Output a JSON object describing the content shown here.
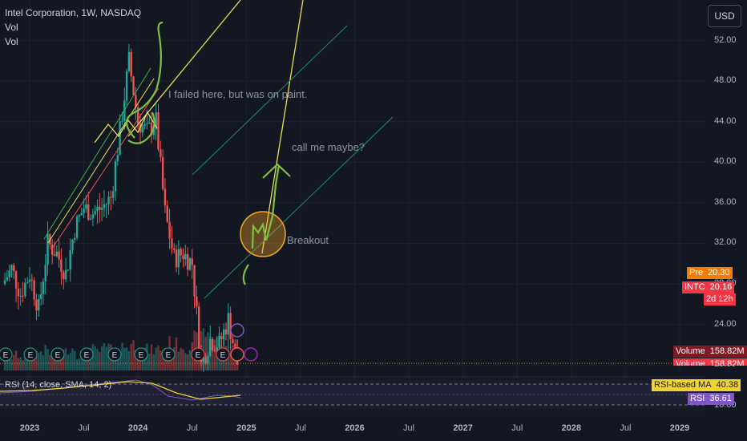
{
  "header": {
    "symbol_line": "Intel Corporation, 1W, NASDAQ",
    "indicator1": "Vol",
    "indicator2": "Vol"
  },
  "currency_button": "USD",
  "price_tags": {
    "pre": {
      "label": "Pre",
      "value": "20.30",
      "color": "#f57c00"
    },
    "intc": {
      "label": "INTC",
      "value": "20.16",
      "color": "#f23645"
    },
    "countdown": "2d 12h",
    "volume1": {
      "label": "Volume",
      "value": "158.82M",
      "color": "#801922"
    },
    "volume2": {
      "label": "Volume",
      "value": "158.82M",
      "color": "#f23645"
    },
    "rsi_ma": {
      "label": "RSI-based MA",
      "value": "40.38",
      "color": "#f2d22e"
    },
    "rsi": {
      "label": "RSI",
      "value": "36.61",
      "color": "#7e57c2"
    }
  },
  "annotations": {
    "failed": "I failed here, but was on paint.",
    "call": "call me maybe?",
    "breakout": "Breakout"
  },
  "rsi_label": "RSI (14, close, SMA, 14, 2)",
  "colors": {
    "up": "#26a69a",
    "down": "#ef5350",
    "background": "#131722",
    "trendline": "#e6e05a",
    "channel": "#1f8a6a",
    "marker": "#7cc142",
    "circle": "#f5a623"
  },
  "chart_data": {
    "type": "candlestick",
    "title": "Intel Corporation, 1W, NASDAQ",
    "y_ticks": [
      "16.00",
      "20.00",
      "24.00",
      "28.00",
      "32.00",
      "36.00",
      "40.00",
      "44.00",
      "48.00",
      "52.00"
    ],
    "ylim": [
      12.5,
      56
    ],
    "x_ticks": [
      "2023",
      "Jul",
      "2024",
      "Jul",
      "2025",
      "Jul",
      "2026",
      "Jul",
      "2027",
      "Jul",
      "2028",
      "Jul",
      "2029"
    ],
    "x_tick_years": [
      2023.0,
      2023.5,
      2024.0,
      2024.5,
      2025.0,
      2025.5,
      2026.0,
      2026.5,
      2027.0,
      2027.5,
      2028.0,
      2028.5,
      2029.0
    ],
    "last_price": 20.16,
    "pre_price": 20.3,
    "series_close": [
      {
        "date": "2022-10",
        "price": 28.0
      },
      {
        "date": "2022-11",
        "price": 29.5
      },
      {
        "date": "2022-12",
        "price": 27.0
      },
      {
        "date": "2023-01",
        "price": 29.0
      },
      {
        "date": "2023-02",
        "price": 25.5
      },
      {
        "date": "2023-03",
        "price": 32.0
      },
      {
        "date": "2023-04",
        "price": 31.0
      },
      {
        "date": "2023-05",
        "price": 29.0
      },
      {
        "date": "2023-06",
        "price": 33.5
      },
      {
        "date": "2023-07",
        "price": 35.5
      },
      {
        "date": "2023-08",
        "price": 35.0
      },
      {
        "date": "2023-09",
        "price": 35.5
      },
      {
        "date": "2023-10",
        "price": 36.5
      },
      {
        "date": "2023-11",
        "price": 43.0
      },
      {
        "date": "2023-12",
        "price": 50.0
      },
      {
        "date": "2024-01",
        "price": 44.0
      },
      {
        "date": "2024-02",
        "price": 43.0
      },
      {
        "date": "2024-03",
        "price": 44.0
      },
      {
        "date": "2024-04",
        "price": 35.0
      },
      {
        "date": "2024-05",
        "price": 30.5
      },
      {
        "date": "2024-06",
        "price": 31.0
      },
      {
        "date": "2024-07",
        "price": 30.0
      },
      {
        "date": "2024-08",
        "price": 20.0
      },
      {
        "date": "2024-09",
        "price": 22.5
      },
      {
        "date": "2024-10",
        "price": 22.0
      },
      {
        "date": "2024-11",
        "price": 24.5
      },
      {
        "date": "2024-12",
        "price": 20.16
      }
    ],
    "volume": [
      30,
      35,
      28,
      40,
      45,
      38,
      42,
      50,
      36,
      48,
      44,
      52,
      39,
      55,
      60,
      48,
      46,
      50,
      62,
      58,
      52,
      70,
      85,
      74,
      66,
      60,
      68
    ]
  }
}
